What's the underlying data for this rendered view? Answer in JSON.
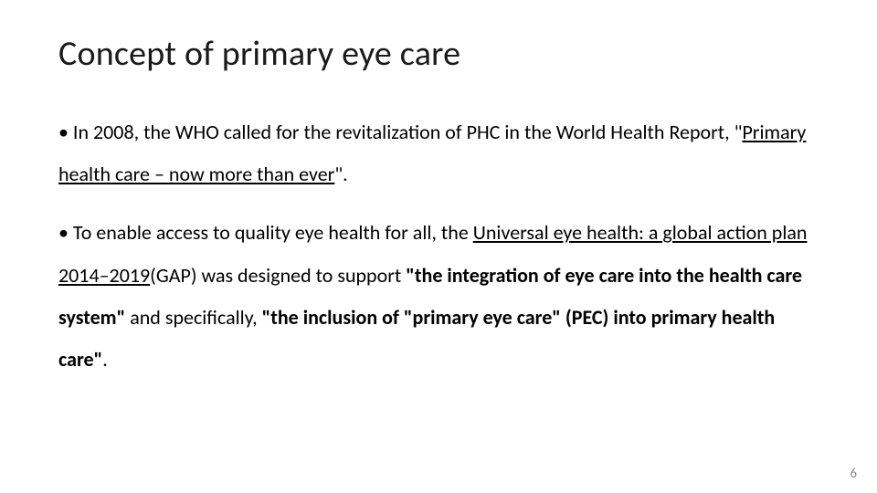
{
  "slide": {
    "title": "Concept of primary eye care",
    "bullets": [
      {
        "prefix": "• In 2008, the WHO called for the revitalization of PHC in the World Health Report, \"",
        "underlined": "Primary health care – now more than ever",
        "suffix": "\"."
      },
      {
        "prefix": "• To enable access to quality eye health for all, the ",
        "underlined": "Universal eye health: a global action plan 2014–2019",
        "mid1": "(GAP) was designed to support ",
        "bold1": "\"the integration of eye care into the health care system\"",
        "mid2": " and specifically, ",
        "bold2": "\"the inclusion of \"primary eye care\" (PEC) into primary health care\"",
        "suffix": "."
      }
    ],
    "page_number": "6"
  },
  "style": {
    "background_color": "#ffffff",
    "title_color": "#1a1a1a",
    "body_color": "#000000",
    "page_num_color": "#8b8b8b",
    "title_fontsize": 38,
    "body_fontsize": 22,
    "line_height": 2.1,
    "font_family": "Calibri"
  }
}
